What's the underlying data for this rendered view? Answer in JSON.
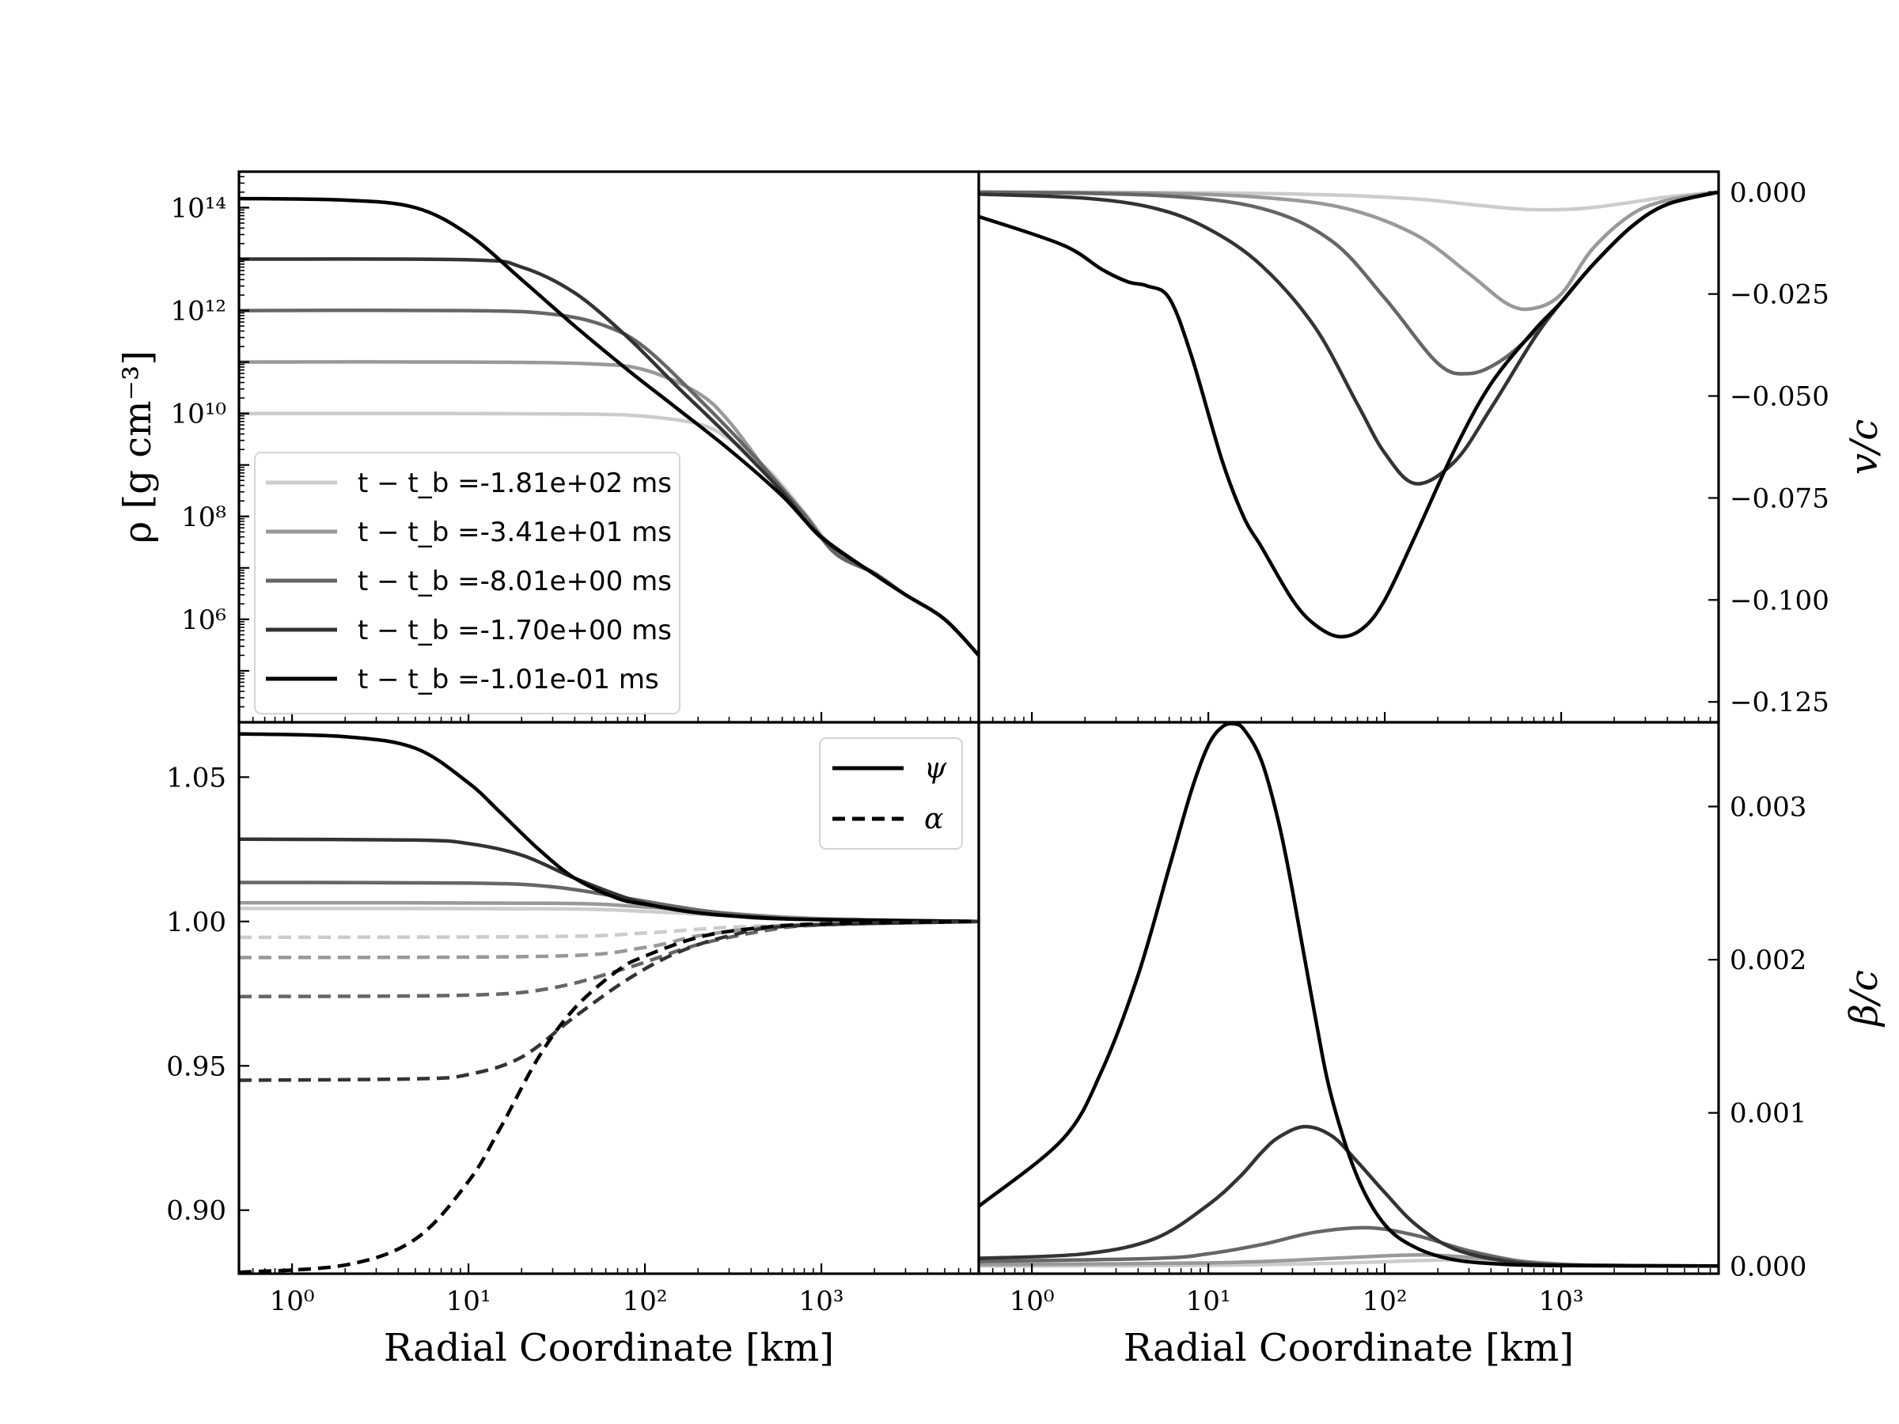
{
  "chart_data": [
    {
      "panel": "top-left",
      "type": "line",
      "xscale": "log",
      "yscale": "log",
      "xlim": [
        0.5,
        7800
      ],
      "ylim": [
        10000,
        500000000000000
      ],
      "ylabel": "ρ [g cm⁻³]",
      "yticks": [
        {
          "value": 100000000000000.0,
          "label": "10¹⁴"
        },
        {
          "value": 1000000000000.0,
          "label": "10¹²"
        },
        {
          "value": 10000000000.0,
          "label": "10¹⁰"
        },
        {
          "value": 100000000.0,
          "label": "10⁸"
        },
        {
          "value": 1000000.0,
          "label": "10⁶"
        }
      ],
      "legend": {
        "position": "lower-left"
      },
      "series": [
        {
          "name": "t − t_b =-1.81e+02 ms",
          "color": "#cccccc",
          "x": [
            0.5,
            10,
            50,
            100,
            200,
            300,
            500,
            800,
            1200,
            2000,
            3000,
            5000,
            7800
          ],
          "y": [
            10000000000.0,
            10000000000.0,
            9700000000.0,
            8800000000.0,
            6300000000.0,
            3200000000.0,
            800000000.0,
            120000000.0,
            22000000.0,
            8000000.0,
            3000000.0,
            1000000.0,
            200000.0
          ]
        },
        {
          "name": "t − t_b =-3.41e+01 ms",
          "color": "#999999",
          "x": [
            0.5,
            10,
            50,
            100,
            200,
            300,
            500,
            800,
            1200,
            2000,
            3000,
            5000,
            7800
          ],
          "y": [
            100000000000.0,
            100000000000.0,
            92000000000.0,
            70000000000.0,
            25000000000.0,
            7000000000.0,
            700000000.0,
            110000000.0,
            20000000.0,
            8000000.0,
            3000000.0,
            1000000.0,
            200000.0
          ]
        },
        {
          "name": "t − t_b =-8.01e+00 ms",
          "color": "#666666",
          "x": [
            0.5,
            10,
            30,
            60,
            100,
            200,
            400,
            800,
            1200,
            2000,
            3000,
            5000,
            7800
          ],
          "y": [
            1000000000000.0,
            1000000000000.0,
            850000000000.0,
            500000000000.0,
            190000000000.0,
            20000000000.0,
            1700000000.0,
            110000000.0,
            19000000.0,
            7800000.0,
            3000000.0,
            1000000.0,
            200000.0
          ]
        },
        {
          "name": "t − t_b =-1.70e+00 ms",
          "color": "#333333",
          "x": [
            0.5,
            10,
            20,
            40,
            80,
            150,
            300,
            600,
            1000,
            2000,
            3000,
            5000,
            7800
          ],
          "y": [
            10000000000000.0,
            9700000000000.0,
            7000000000000.0,
            2200000000000.0,
            300000000000.0,
            35000000000.0,
            3500000000.0,
            300000000.0,
            38000000.0,
            7500000.0,
            3000000.0,
            1000000.0,
            200000.0
          ]
        },
        {
          "name": "t − t_b =-1.01e-01 ms",
          "color": "#000000",
          "x": [
            0.5,
            2,
            5,
            10,
            20,
            40,
            80,
            150,
            300,
            600,
            1000,
            2000,
            3000,
            5000,
            7800
          ],
          "y": [
            150000000000000.0,
            140000000000000.0,
            100000000000000.0,
            30000000000000.0,
            4000000000000.0,
            500000000000.0,
            70000000000.0,
            13000000000.0,
            2000000000.0,
            250000000.0,
            40000000.0,
            7500000.0,
            3000000.0,
            1000000.0,
            200000.0
          ]
        }
      ]
    },
    {
      "panel": "top-right",
      "type": "line",
      "xscale": "log",
      "xlim": [
        0.5,
        7800
      ],
      "ylim": [
        -0.13,
        0.005
      ],
      "ylabel": "v/c",
      "yticks": [
        {
          "value": 0.0,
          "label": "0.000"
        },
        {
          "value": -0.025,
          "label": "−0.025"
        },
        {
          "value": -0.05,
          "label": "−0.050"
        },
        {
          "value": -0.075,
          "label": "−0.075"
        },
        {
          "value": -0.1,
          "label": "−0.100"
        },
        {
          "value": -0.125,
          "label": "−0.125"
        }
      ],
      "series": [
        {
          "name": "t − t_b =-1.81e+02 ms",
          "color": "#cccccc",
          "x": [
            0.5,
            10,
            50,
            150,
            300,
            600,
            1000,
            1500,
            2500,
            4000,
            7800
          ],
          "y": [
            0,
            -0.0002,
            -0.0007,
            -0.0017,
            -0.003,
            -0.0042,
            -0.0043,
            -0.0038,
            -0.0025,
            -0.0012,
            0
          ]
        },
        {
          "name": "t − t_b =-3.41e+01 ms",
          "color": "#999999",
          "x": [
            0.5,
            5,
            20,
            60,
            150,
            300,
            500,
            700,
            1000,
            1500,
            2500,
            4000,
            7800
          ],
          "y": [
            0,
            -0.0003,
            -0.0013,
            -0.004,
            -0.0105,
            -0.02,
            -0.0275,
            -0.0285,
            -0.025,
            -0.014,
            -0.0055,
            -0.002,
            0
          ]
        },
        {
          "name": "t − t_b =-8.01e+00 ms",
          "color": "#666666",
          "x": [
            0.5,
            5,
            20,
            50,
            100,
            200,
            300,
            450,
            700,
            1000,
            1500,
            2500,
            4000,
            7800
          ],
          "y": [
            0,
            -0.0008,
            -0.004,
            -0.012,
            -0.026,
            -0.042,
            -0.0445,
            -0.0415,
            -0.0345,
            -0.027,
            -0.018,
            -0.0085,
            -0.003,
            0
          ]
        },
        {
          "name": "t − t_b =-1.70e+00 ms",
          "color": "#333333",
          "x": [
            0.5,
            2,
            5,
            10,
            20,
            40,
            70,
            100,
            150,
            250,
            400,
            700,
            1000,
            1500,
            2500,
            4000,
            7800
          ],
          "y": [
            -0.0005,
            -0.0015,
            -0.004,
            -0.009,
            -0.018,
            -0.033,
            -0.052,
            -0.064,
            -0.0715,
            -0.066,
            -0.053,
            -0.036,
            -0.027,
            -0.018,
            -0.0085,
            -0.003,
            0
          ]
        },
        {
          "name": "t − t_b =-1.01e-01 ms",
          "color": "#000000",
          "x": [
            0.5,
            1.5,
            2.5,
            3.5,
            4.5,
            6,
            8,
            12,
            16,
            20,
            30,
            40,
            55,
            75,
            100,
            150,
            250,
            400,
            700,
            1000,
            1500,
            2500,
            4000,
            7800
          ],
          "y": [
            -0.006,
            -0.013,
            -0.019,
            -0.022,
            -0.023,
            -0.026,
            -0.04,
            -0.066,
            -0.08,
            -0.087,
            -0.1,
            -0.106,
            -0.109,
            -0.107,
            -0.1,
            -0.084,
            -0.063,
            -0.047,
            -0.034,
            -0.027,
            -0.018,
            -0.0085,
            -0.003,
            0
          ]
        }
      ]
    },
    {
      "panel": "bottom-left",
      "type": "line",
      "xscale": "log",
      "xlim": [
        0.5,
        7800
      ],
      "ylim": [
        0.878,
        1.069
      ],
      "xlabel": "Radial Coordinate [km]",
      "xticks": [
        {
          "value": 1,
          "label": "10⁰"
        },
        {
          "value": 10,
          "label": "10¹"
        },
        {
          "value": 100,
          "label": "10²"
        },
        {
          "value": 1000,
          "label": "10³"
        }
      ],
      "yticks": [
        {
          "value": 0.9,
          "label": "0.90"
        },
        {
          "value": 0.95,
          "label": "0.95"
        },
        {
          "value": 1.0,
          "label": "1.00"
        },
        {
          "value": 1.05,
          "label": "1.05"
        }
      ],
      "legend": {
        "position": "top-right",
        "entries": [
          {
            "label": "ψ",
            "style": "solid"
          },
          {
            "label": "α",
            "style": "dashed"
          }
        ]
      },
      "series": [
        {
          "color": "#cccccc",
          "style": "solid",
          "x": [
            0.5,
            30,
            100,
            300,
            1000,
            7800
          ],
          "y": [
            1.0045,
            1.0044,
            1.0035,
            1.002,
            1.0008,
            1.0
          ]
        },
        {
          "color": "#999999",
          "style": "solid",
          "x": [
            0.5,
            30,
            100,
            300,
            1000,
            7800
          ],
          "y": [
            1.0065,
            1.0063,
            1.005,
            1.0028,
            1.001,
            1.0
          ]
        },
        {
          "color": "#666666",
          "style": "solid",
          "x": [
            0.5,
            10,
            30,
            80,
            200,
            500,
            1000,
            7800
          ],
          "y": [
            1.0135,
            1.0133,
            1.012,
            1.008,
            1.004,
            1.0015,
            1.0007,
            1.0
          ]
        },
        {
          "color": "#333333",
          "style": "solid",
          "x": [
            0.5,
            5,
            10,
            20,
            40,
            80,
            150,
            300,
            700,
            7800
          ],
          "y": [
            1.0285,
            1.0282,
            1.027,
            1.023,
            1.015,
            1.008,
            1.004,
            1.002,
            1.0008,
            1.0
          ]
        },
        {
          "color": "#000000",
          "style": "solid",
          "x": [
            0.5,
            2,
            5,
            10,
            15,
            25,
            40,
            70,
            100,
            200,
            400,
            1000,
            7800
          ],
          "y": [
            1.065,
            1.064,
            1.06,
            1.048,
            1.038,
            1.025,
            1.015,
            1.008,
            1.006,
            1.003,
            1.0015,
            1.0006,
            1.0
          ]
        },
        {
          "color": "#cccccc",
          "style": "dashed",
          "x": [
            0.5,
            30,
            100,
            300,
            1000,
            7800
          ],
          "y": [
            0.9945,
            0.9948,
            0.996,
            0.998,
            0.999,
            1.0
          ]
        },
        {
          "color": "#999999",
          "style": "dashed",
          "x": [
            0.5,
            30,
            100,
            200,
            500,
            1000,
            7800
          ],
          "y": [
            0.9875,
            0.988,
            0.991,
            0.995,
            0.9982,
            0.999,
            1.0
          ]
        },
        {
          "color": "#666666",
          "style": "dashed",
          "x": [
            0.5,
            10,
            30,
            80,
            200,
            500,
            1000,
            7800
          ],
          "y": [
            0.974,
            0.9745,
            0.977,
            0.984,
            0.992,
            0.997,
            0.9988,
            1.0
          ]
        },
        {
          "color": "#333333",
          "style": "dashed",
          "x": [
            0.5,
            5,
            10,
            20,
            40,
            80,
            150,
            300,
            700,
            7800
          ],
          "y": [
            0.945,
            0.9455,
            0.947,
            0.953,
            0.967,
            0.98,
            0.989,
            0.995,
            0.9985,
            1.0
          ]
        },
        {
          "color": "#000000",
          "style": "dashed",
          "x": [
            0.5,
            2,
            5,
            10,
            15,
            25,
            40,
            70,
            100,
            200,
            400,
            1000,
            7800
          ],
          "y": [
            0.8785,
            0.881,
            0.89,
            0.91,
            0.928,
            0.953,
            0.97,
            0.983,
            0.988,
            0.9945,
            0.9975,
            0.9992,
            1.0
          ]
        }
      ]
    },
    {
      "panel": "bottom-right",
      "type": "line",
      "xscale": "log",
      "xlim": [
        0.5,
        7800
      ],
      "ylim": [
        -5e-05,
        0.00355
      ],
      "xlabel": "Radial Coordinate [km]",
      "ylabel": "β/c",
      "xticks": [
        {
          "value": 1,
          "label": "10⁰"
        },
        {
          "value": 10,
          "label": "10¹"
        },
        {
          "value": 100,
          "label": "10²"
        },
        {
          "value": 1000,
          "label": "10³"
        }
      ],
      "yticks": [
        {
          "value": 0.0,
          "label": "0.000"
        },
        {
          "value": 0.001,
          "label": "0.001"
        },
        {
          "value": 0.002,
          "label": "0.002"
        },
        {
          "value": 0.003,
          "label": "0.003"
        }
      ],
      "series": [
        {
          "color": "#cccccc",
          "x": [
            0.5,
            10,
            60,
            150,
            300,
            700,
            1500,
            7800
          ],
          "y": [
            0,
            5e-06,
            2e-05,
            3.5e-05,
            4e-05,
            2e-05,
            5e-06,
            0
          ]
        },
        {
          "color": "#999999",
          "x": [
            0.5,
            10,
            50,
            120,
            200,
            400,
            800,
            1500,
            7800
          ],
          "y": [
            1e-05,
            2e-05,
            5e-05,
            7e-05,
            7e-05,
            4.5e-05,
            2e-05,
            5e-06,
            0
          ]
        },
        {
          "color": "#666666",
          "x": [
            0.5,
            5,
            10,
            20,
            40,
            80,
            150,
            300,
            600,
            1200,
            7800
          ],
          "y": [
            3e-05,
            5e-05,
            8e-05,
            0.00014,
            0.00022,
            0.00025,
            0.0002,
            0.0001,
            3e-05,
            5e-06,
            0
          ]
        },
        {
          "color": "#333333",
          "x": [
            0.5,
            2,
            5,
            10,
            15,
            20,
            25,
            35,
            50,
            70,
            100,
            150,
            250,
            500,
            1000,
            7800
          ],
          "y": [
            5e-05,
            8e-05,
            0.00018,
            0.0004,
            0.00058,
            0.00074,
            0.00084,
            0.00091,
            0.00085,
            0.00068,
            0.00048,
            0.00027,
            0.00011,
            3e-05,
            7e-06,
            0
          ]
        },
        {
          "color": "#000000",
          "x": [
            0.5,
            1.5,
            2.5,
            4,
            6,
            8,
            10,
            12,
            14,
            16,
            20,
            25,
            30,
            40,
            50,
            70,
            100,
            150,
            250,
            500,
            1000,
            7800
          ],
          "y": [
            0.00039,
            0.00083,
            0.00128,
            0.0019,
            0.0026,
            0.0031,
            0.0034,
            0.00352,
            0.00354,
            0.0035,
            0.0033,
            0.0029,
            0.00245,
            0.00165,
            0.0011,
            0.00058,
            0.00027,
            0.00012,
            4e-05,
            1e-05,
            3e-06,
            0
          ]
        }
      ]
    }
  ]
}
